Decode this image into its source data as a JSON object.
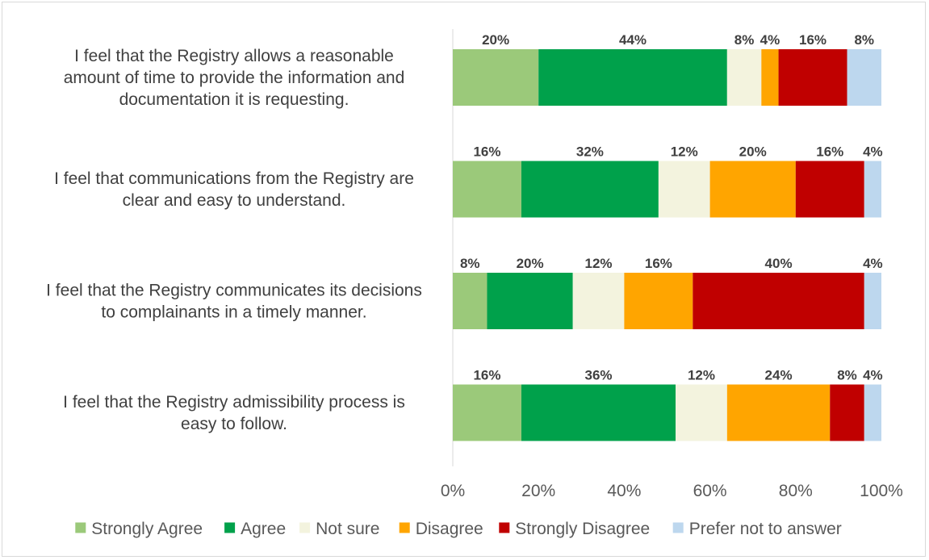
{
  "chart_data": {
    "type": "bar",
    "orientation": "horizontal",
    "stacked": "percent",
    "categories": [
      "I feel that the Registry allows a reasonable amount of time to provide the information and documentation it is requesting.",
      "I feel that communications from the Registry are clear and easy to understand.",
      "I feel that the Registry communicates its decisions to complainants in a timely manner.",
      "I feel that the Registry admissibility process is easy to follow."
    ],
    "category_lines": [
      [
        "I feel that the Registry allows a reasonable",
        "amount of time to provide the information and",
        "documentation it is requesting."
      ],
      [
        "I feel that communications from the Registry are",
        "clear and easy to understand."
      ],
      [
        "I feel that the Registry communicates its decisions",
        "to complainants in a timely manner."
      ],
      [
        "I feel that the Registry admissibility process is",
        "easy to follow."
      ]
    ],
    "series": [
      {
        "name": "Strongly Agree",
        "color": "#9bc97a",
        "values": [
          20,
          16,
          8,
          16
        ]
      },
      {
        "name": "Agree",
        "color": "#00a14b",
        "values": [
          44,
          32,
          20,
          36
        ]
      },
      {
        "name": "Not sure",
        "color": "#f3f3de",
        "values": [
          8,
          12,
          12,
          12
        ]
      },
      {
        "name": "Disagree",
        "color": "#ffa500",
        "values": [
          4,
          20,
          16,
          24
        ]
      },
      {
        "name": "Strongly Disagree",
        "color": "#c00000",
        "values": [
          16,
          16,
          40,
          8
        ]
      },
      {
        "name": "Prefer not to answer",
        "color": "#bdd7ee",
        "values": [
          8,
          4,
          4,
          4
        ]
      }
    ],
    "x_ticks": [
      "0%",
      "20%",
      "40%",
      "60%",
      "80%",
      "100%"
    ],
    "xlim": [
      0,
      100
    ],
    "grid": false,
    "legend": "bottom",
    "title": "",
    "xlabel": "",
    "ylabel": ""
  }
}
